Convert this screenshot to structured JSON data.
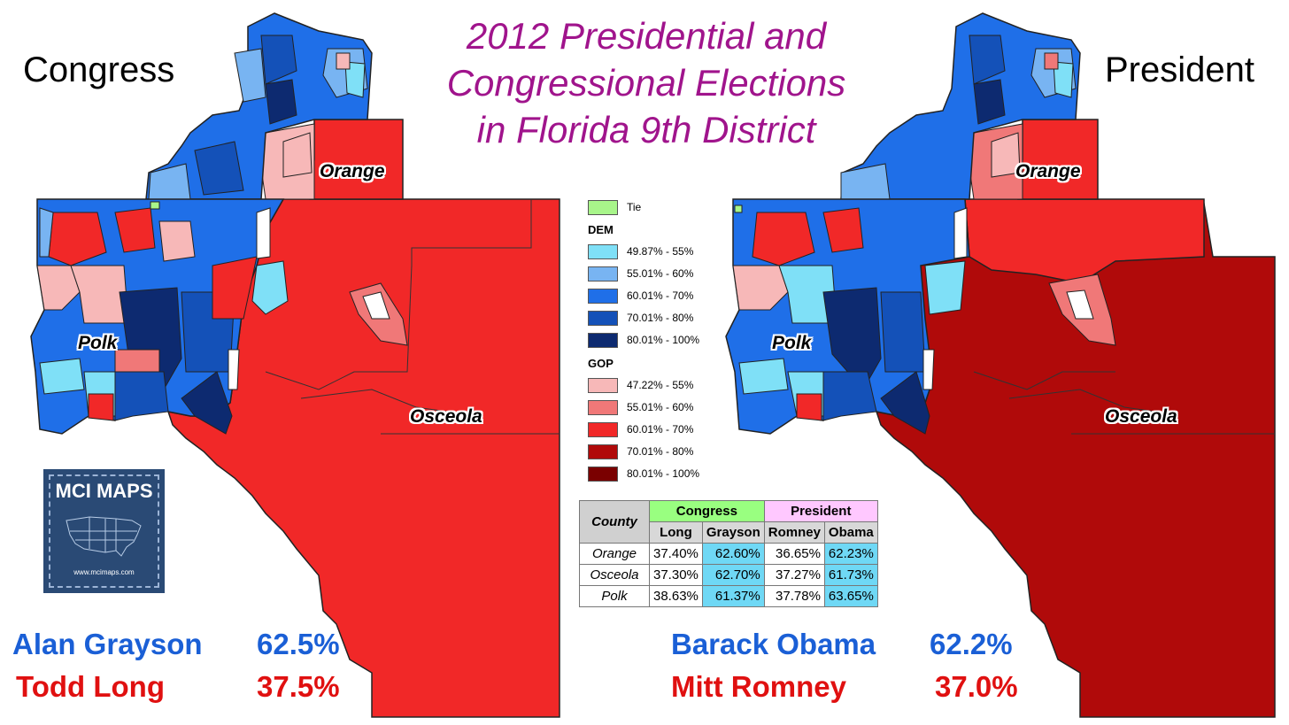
{
  "title": {
    "line1": "2012 Presidential and",
    "line2": "Congressional Elections",
    "line3": "in Florida 9th District"
  },
  "maps": {
    "left_label": "Congress",
    "right_label": "President",
    "counties": {
      "orange": "Orange",
      "polk": "Polk",
      "osceola": "Osceola"
    }
  },
  "legend": {
    "tie": "Tie",
    "dem_header": "DEM",
    "dem": [
      "49.87% - 55%",
      "55.01% - 60%",
      "60.01% - 70%",
      "70.01% - 80%",
      "80.01% - 100%"
    ],
    "gop_header": "GOP",
    "gop": [
      "47.22% - 55%",
      "55.01% - 60%",
      "60.01% - 70%",
      "70.01% - 80%",
      "80.01% - 100%"
    ],
    "colors": {
      "tie": "#a8f58a",
      "dem": [
        "#7fe0f7",
        "#78b4f2",
        "#1f6fe8",
        "#1451b8",
        "#0d2a70"
      ],
      "gop": [
        "#f7b8b8",
        "#f07878",
        "#f12828",
        "#b00a0a",
        "#7a0000"
      ]
    }
  },
  "table": {
    "county_header": "County",
    "congress_header": "Congress",
    "president_header": "President",
    "sub_headers": [
      "Long",
      "Grayson",
      "Romney",
      "Obama"
    ],
    "rows": [
      {
        "county": "Orange",
        "long": "37.40%",
        "grayson": "62.60%",
        "romney": "36.65%",
        "obama": "62.23%"
      },
      {
        "county": "Osceola",
        "long": "37.30%",
        "grayson": "62.70%",
        "romney": "37.27%",
        "obama": "61.73%"
      },
      {
        "county": "Polk",
        "long": "38.63%",
        "grayson": "61.37%",
        "romney": "37.78%",
        "obama": "63.65%"
      }
    ]
  },
  "results": {
    "congress": [
      {
        "name": "Alan Grayson",
        "pct": "62.5%",
        "color": "#1a5fd6"
      },
      {
        "name": "Todd Long",
        "pct": "37.5%",
        "color": "#e01010"
      }
    ],
    "president": [
      {
        "name": "Barack Obama",
        "pct": "62.2%",
        "color": "#1a5fd6"
      },
      {
        "name": "Mitt Romney",
        "pct": "37.0%",
        "color": "#e01010"
      }
    ]
  },
  "logo": {
    "title": "MCI MAPS",
    "url": "www.mcimaps.com"
  }
}
